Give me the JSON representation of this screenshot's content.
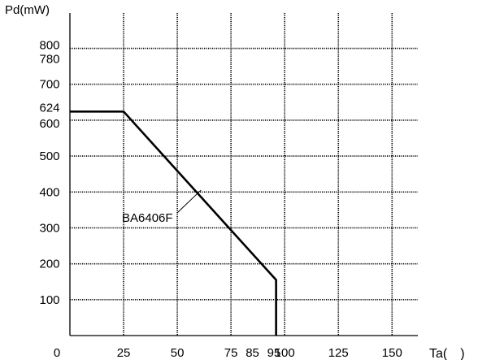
{
  "chart_data": {
    "type": "line",
    "ylabel": "Pd(mW)",
    "xlabel": "Ta(　)",
    "xlim": [
      0,
      162
    ],
    "ylim": [
      0,
      885
    ],
    "x_ticks": [
      0,
      25,
      50,
      75,
      85,
      95,
      100,
      125,
      150
    ],
    "x_tick_labels": [
      "0",
      "25",
      "50",
      "75",
      "85",
      "95",
      "100",
      "125",
      "150"
    ],
    "x_gridlines": [
      25,
      50,
      75,
      100,
      125,
      150
    ],
    "y_ticks": [
      100,
      200,
      300,
      400,
      500,
      600,
      624,
      700,
      780,
      800
    ],
    "y_tick_labels": [
      "100",
      "200",
      "300",
      "400",
      "500",
      "600",
      "624",
      "700",
      "780",
      "800"
    ],
    "y_gridlines": [
      100,
      200,
      300,
      400,
      500,
      600,
      700,
      800
    ],
    "grid": true,
    "grid_style": "dotted",
    "series": [
      {
        "name": "BA6406F",
        "x": [
          0,
          25,
          96,
          96
        ],
        "y": [
          624,
          624,
          155,
          0
        ]
      }
    ],
    "annotations": [
      {
        "text": "BA6406F",
        "points_to": [
          61,
          405
        ]
      }
    ]
  }
}
